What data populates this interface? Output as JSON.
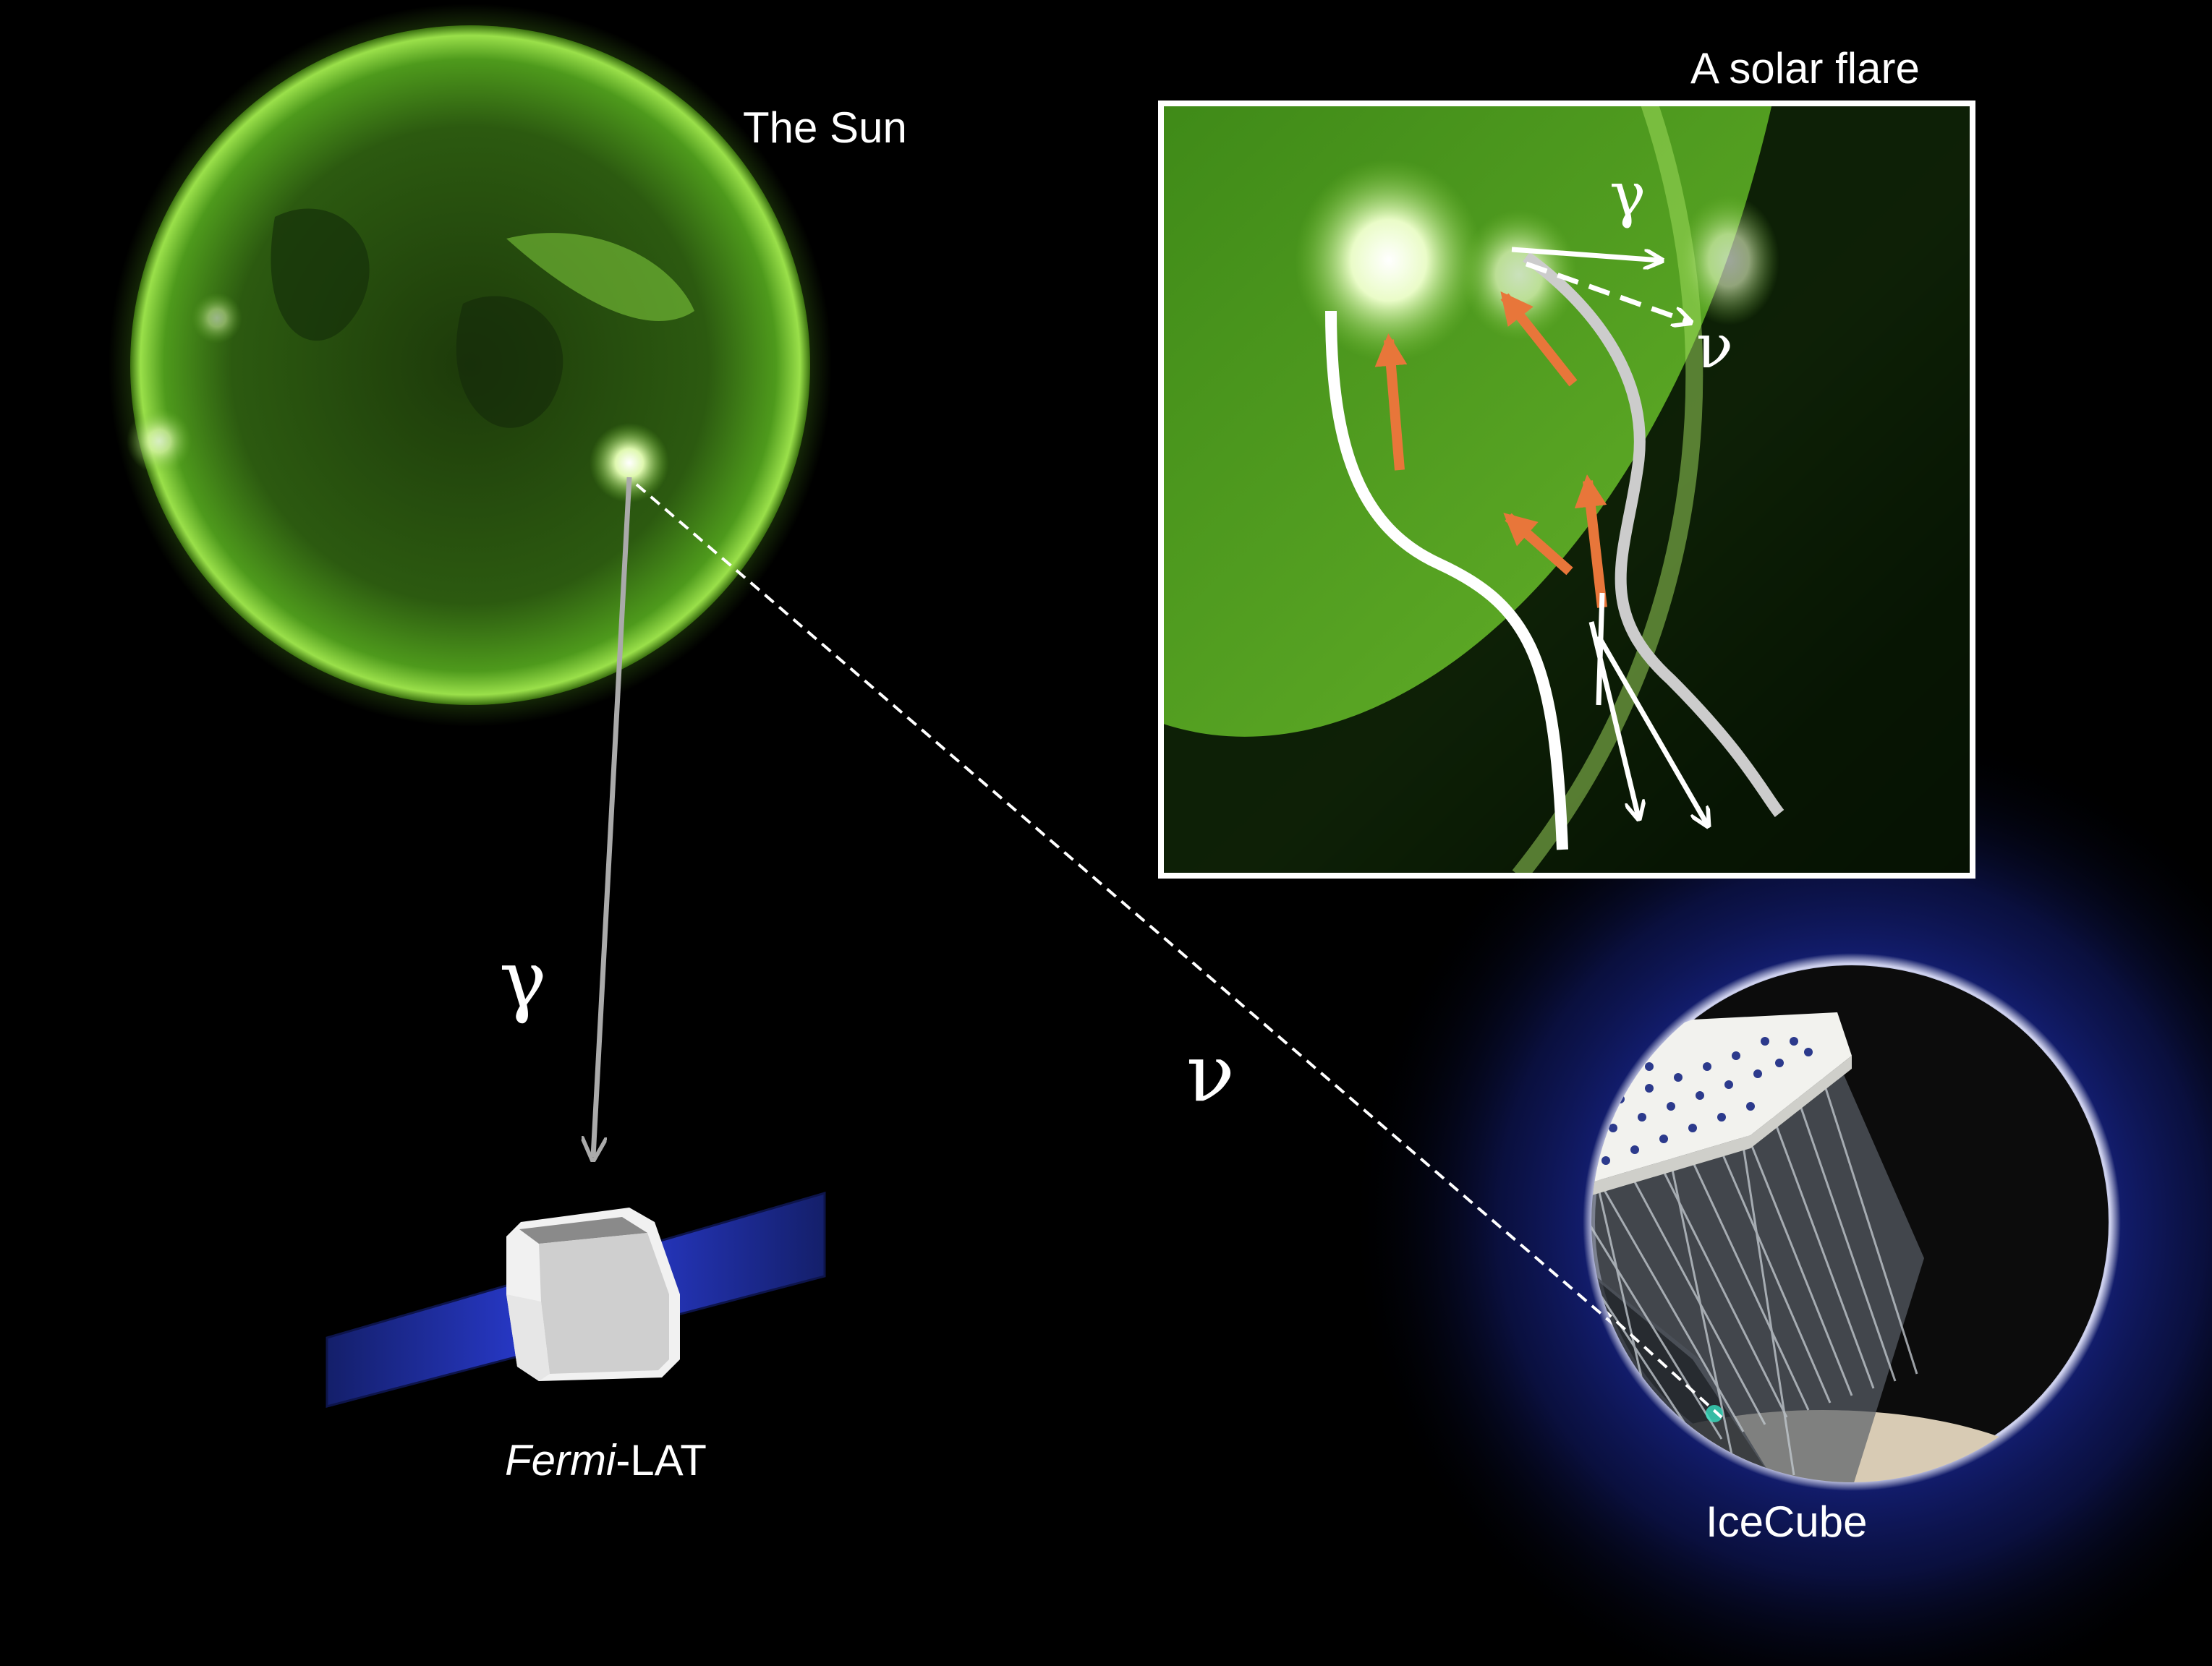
{
  "labels": {
    "sun": "The Sun",
    "flare": "A solar flare",
    "fermi_italic": "Fermi",
    "fermi_rest": "-LAT",
    "icecube": "IceCube"
  },
  "symbols": {
    "gamma_main": "γ",
    "nu_main": "ν",
    "gamma_inset": "γ",
    "nu_inset": "ν"
  },
  "colors": {
    "background": "#000000",
    "sun_green": "#4a9a18",
    "glow_blue": "#1a2a9a",
    "panel_blue": "#1c2a8c",
    "flare_orange": "#e8763a",
    "line_white": "#ffffff",
    "line_grey": "#cccccc"
  }
}
